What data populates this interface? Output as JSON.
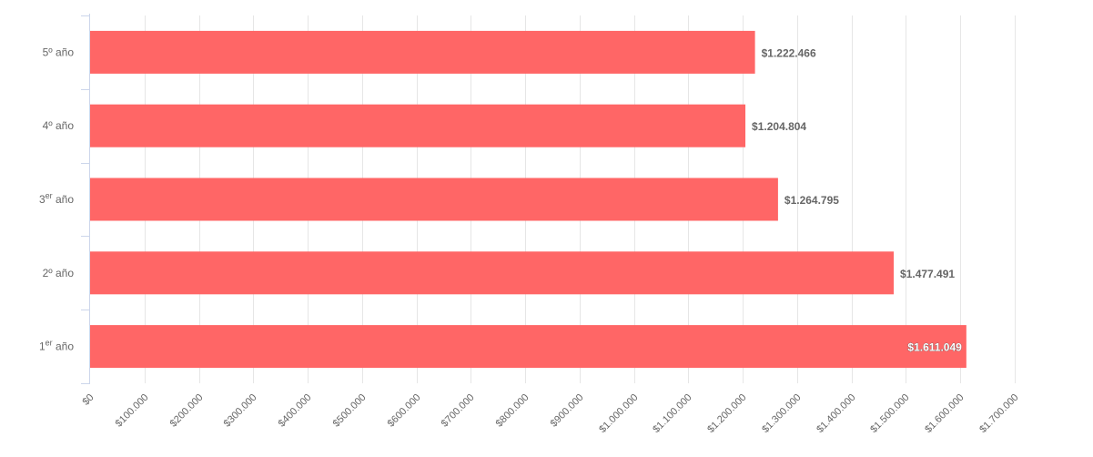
{
  "chart_data": {
    "type": "bar",
    "orientation": "horizontal",
    "categories": [
      {
        "base": "1",
        "sup": "er",
        "rest": " año"
      },
      {
        "base": "2º año",
        "sup": "",
        "rest": ""
      },
      {
        "base": "3",
        "sup": "er",
        "rest": " año"
      },
      {
        "base": "4º año",
        "sup": "",
        "rest": ""
      },
      {
        "base": "5º año",
        "sup": "",
        "rest": ""
      }
    ],
    "values": [
      1611049,
      1477491,
      1264795,
      1204804,
      1222466
    ],
    "value_labels": [
      "$1.611.049",
      "$1.477.491",
      "$1.264.795",
      "$1.204.804",
      "$1.222.466"
    ],
    "x_ticks": [
      {
        "value": 0,
        "label": "$0"
      },
      {
        "value": 100000,
        "label": "$100.000"
      },
      {
        "value": 200000,
        "label": "$200.000"
      },
      {
        "value": 300000,
        "label": "$300.000"
      },
      {
        "value": 400000,
        "label": "$400.000"
      },
      {
        "value": 500000,
        "label": "$500.000"
      },
      {
        "value": 600000,
        "label": "$600.000"
      },
      {
        "value": 700000,
        "label": "$700.000"
      },
      {
        "value": 800000,
        "label": "$800.000"
      },
      {
        "value": 900000,
        "label": "$900.000"
      },
      {
        "value": 1000000,
        "label": "$1.000.000"
      },
      {
        "value": 1100000,
        "label": "$1.100.000"
      },
      {
        "value": 1200000,
        "label": "$1.200.000"
      },
      {
        "value": 1300000,
        "label": "$1.300.000"
      },
      {
        "value": 1400000,
        "label": "$1.400.000"
      },
      {
        "value": 1500000,
        "label": "$1.500.000"
      },
      {
        "value": 1600000,
        "label": "$1.600.000"
      },
      {
        "value": 1700000,
        "label": "$1.700.000"
      }
    ],
    "xlim": [
      0,
      1700000
    ],
    "title": "",
    "xlabel": "",
    "ylabel": "",
    "grid": true,
    "bar_color": "#ff6666",
    "grid_color": "#e6e6e6",
    "axis_color": "#ccd6eb"
  }
}
